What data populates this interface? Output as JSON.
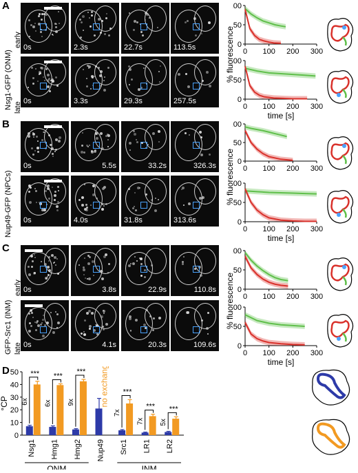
{
  "panels": [
    {
      "letter": "A",
      "protein": "Nsg1-GFP (ONM)",
      "rows": [
        {
          "stage": "early",
          "times": [
            "0s",
            "2.3s",
            "22.7s",
            "113.5s"
          ]
        },
        {
          "stage": "late",
          "times": [
            "0s",
            "3.3s",
            "29.3s",
            "257.5s"
          ]
        }
      ]
    },
    {
      "letter": "B",
      "protein": "Nup49-GFP (NPCs)",
      "rows": [
        {
          "stage": "early",
          "times": [
            "0s",
            "5.5s",
            "33.2s",
            "326.3s"
          ]
        },
        {
          "stage": "late",
          "times": [
            "0s",
            "4.0s",
            "31.8s",
            "313.6s"
          ]
        }
      ]
    },
    {
      "letter": "C",
      "protein": "GFP-Src1 (INM)",
      "rows": [
        {
          "stage": "early",
          "times": [
            "0s",
            "3.8s",
            "22.9s",
            "110.8s"
          ]
        },
        {
          "stage": "late",
          "times": [
            "0s",
            "4.1s",
            "20.3s",
            "109.6s"
          ]
        }
      ]
    }
  ],
  "curve_axes": {
    "ylabel": "% fluorescence",
    "xlabel": "time [s]",
    "yticks": [
      "0",
      "50",
      "100"
    ],
    "xticks": [
      "0",
      "100",
      "200",
      "300"
    ],
    "colors": {
      "green": "#5fbf4a",
      "red": "#d9312b"
    }
  },
  "chart_data": [
    {
      "type": "line",
      "panel": "A-early",
      "xlim": [
        0,
        300
      ],
      "ylim": [
        0,
        100
      ],
      "series": [
        {
          "color": "green",
          "x": [
            0,
            25,
            50,
            75,
            100,
            125,
            150,
            170
          ],
          "y": [
            92,
            78,
            68,
            60,
            55,
            50,
            47,
            45
          ]
        },
        {
          "color": "red",
          "x": [
            0,
            20,
            40,
            60,
            80,
            100,
            120,
            150
          ],
          "y": [
            90,
            40,
            22,
            12,
            8,
            5,
            3,
            2
          ]
        }
      ]
    },
    {
      "type": "line",
      "panel": "A-late",
      "xlim": [
        0,
        300
      ],
      "ylim": [
        0,
        100
      ],
      "series": [
        {
          "color": "green",
          "x": [
            0,
            50,
            100,
            150,
            200,
            250,
            295
          ],
          "y": [
            80,
            73,
            68,
            66,
            64,
            62,
            60
          ]
        },
        {
          "color": "red",
          "x": [
            0,
            20,
            40,
            60,
            80,
            120,
            160,
            200,
            260
          ],
          "y": [
            85,
            35,
            18,
            10,
            6,
            3,
            2,
            1,
            1
          ]
        }
      ]
    },
    {
      "type": "line",
      "panel": "B-early",
      "xlim": [
        0,
        300
      ],
      "ylim": [
        0,
        100
      ],
      "series": [
        {
          "color": "green",
          "x": [
            0,
            25,
            50,
            75,
            100,
            125,
            150,
            175
          ],
          "y": [
            92,
            88,
            85,
            82,
            78,
            74,
            70,
            66
          ]
        },
        {
          "color": "red",
          "x": [
            0,
            25,
            50,
            75,
            100,
            150,
            200
          ],
          "y": [
            82,
            50,
            32,
            20,
            12,
            5,
            2
          ]
        }
      ]
    },
    {
      "type": "line",
      "panel": "B-late",
      "xlim": [
        0,
        300
      ],
      "ylim": [
        0,
        100
      ],
      "series": [
        {
          "color": "green",
          "x": [
            0,
            50,
            100,
            150,
            200,
            250,
            300
          ],
          "y": [
            80,
            78,
            76,
            75,
            74,
            73,
            72
          ]
        },
        {
          "color": "red",
          "x": [
            0,
            25,
            50,
            75,
            100,
            150,
            200,
            250,
            300
          ],
          "y": [
            85,
            50,
            30,
            18,
            10,
            4,
            2,
            1,
            1
          ]
        }
      ]
    },
    {
      "type": "line",
      "panel": "C-early",
      "xlim": [
        0,
        200
      ],
      "ylim": [
        0,
        100
      ],
      "series": [
        {
          "color": "green",
          "x": [
            0,
            25,
            50,
            75,
            100,
            125,
            150,
            180
          ],
          "y": [
            95,
            75,
            60,
            48,
            38,
            30,
            25,
            22
          ]
        },
        {
          "color": "red",
          "x": [
            0,
            25,
            50,
            75,
            100,
            125,
            150,
            180
          ],
          "y": [
            85,
            55,
            38,
            26,
            18,
            13,
            10,
            8
          ]
        }
      ]
    },
    {
      "type": "line",
      "panel": "C-late",
      "xlim": [
        0,
        300
      ],
      "ylim": [
        0,
        100
      ],
      "series": [
        {
          "color": "green",
          "x": [
            0,
            50,
            100,
            150,
            200,
            250
          ],
          "y": [
            80,
            65,
            58,
            54,
            52,
            50
          ]
        },
        {
          "color": "red",
          "x": [
            0,
            25,
            50,
            75,
            100,
            150,
            200,
            250
          ],
          "y": [
            60,
            30,
            18,
            12,
            8,
            5,
            3,
            2
          ]
        }
      ]
    },
    {
      "type": "bar",
      "panel": "D",
      "ylabel": "°CP",
      "yticks": [
        "0",
        "10",
        "20",
        "30",
        "40",
        "50"
      ],
      "ylim": [
        0,
        50
      ],
      "categories": [
        "Nsg1",
        "Hmg1",
        "Hmg2",
        "Nup49",
        "Src1",
        "LR1",
        "LR2"
      ],
      "series": [
        {
          "color": "blue",
          "values": [
            7,
            6.5,
            4.5,
            21,
            3.8,
            2,
            2.5
          ],
          "errors": [
            0.8,
            0.8,
            0.6,
            8,
            0.6,
            0.4,
            0.5
          ]
        },
        {
          "color": "orange",
          "values": [
            40,
            39.5,
            42.5,
            null,
            25,
            15,
            13
          ],
          "errors": [
            2.5,
            1,
            1.5,
            null,
            3,
            1.5,
            1.5
          ]
        }
      ],
      "annotations": {
        "no_exchange": "no exchange",
        "significance": "***",
        "folds": [
          "6x",
          "6x",
          "9x",
          "7x",
          "7x",
          "5x"
        ]
      },
      "groups": [
        {
          "label": "ONM"
        },
        {
          "label": "INM"
        }
      ],
      "colors": {
        "blue": "#2d3aa8",
        "orange": "#f29a22"
      }
    }
  ],
  "panel_D_letter": "D"
}
